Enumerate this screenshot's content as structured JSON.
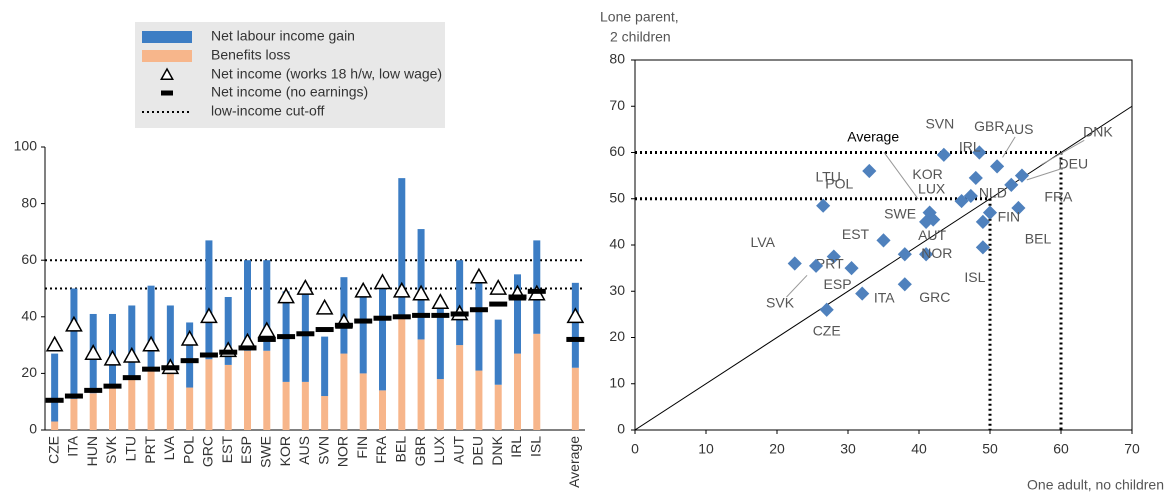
{
  "chart_data": [
    {
      "type": "bar",
      "stacked": true,
      "categories": [
        "CZE",
        "ITA",
        "HUN",
        "SVK",
        "LTU",
        "PRT",
        "LVA",
        "POL",
        "GRC",
        "EST",
        "ESP",
        "SWE",
        "KOR",
        "AUS",
        "SVN",
        "NOR",
        "FIN",
        "FRA",
        "BEL",
        "GBR",
        "LUX",
        "AUT",
        "DEU",
        "DNK",
        "IRL",
        "ISL",
        null,
        "Average"
      ],
      "series": [
        {
          "name": "Benefits loss",
          "color": "#f7b68b",
          "values": [
            3,
            11,
            13,
            15,
            18,
            21,
            20,
            15,
            25,
            23,
            28,
            28,
            17,
            17,
            12,
            27,
            20,
            14,
            40,
            32,
            18,
            30,
            21,
            16,
            27,
            34,
            null,
            22
          ]
        },
        {
          "name": "Net labour income gain",
          "color": "#3c7dc4",
          "values": [
            24,
            39,
            28,
            26,
            26,
            30,
            24,
            23,
            42,
            24,
            32,
            32,
            32,
            33,
            21,
            27,
            30,
            36,
            49,
            39,
            26,
            30,
            31,
            23,
            28,
            33,
            null,
            30
          ]
        }
      ],
      "markers": [
        {
          "name": "Net income (works 18 h/w, low wage)",
          "symbol": "triangle",
          "values": [
            30,
            37,
            27,
            25,
            26,
            30,
            22,
            32,
            40,
            28,
            31,
            35,
            47,
            50,
            43,
            38,
            49,
            52,
            49,
            48,
            45,
            41,
            54,
            50,
            48,
            48,
            null,
            40
          ]
        },
        {
          "name": "Net income (no earnings)",
          "symbol": "dash",
          "values": [
            10.5,
            12,
            14,
            15.5,
            18.5,
            21.5,
            22,
            24.5,
            26.5,
            27.5,
            29,
            32,
            33,
            34,
            35.5,
            37,
            38.5,
            39.5,
            40,
            40.5,
            40.5,
            41,
            42.5,
            44.5,
            47,
            49,
            null,
            32
          ]
        }
      ],
      "reference_lines": {
        "name": "low-income cut-off",
        "values": [
          50,
          60
        ]
      },
      "ylim": [
        0,
        100
      ],
      "yticks": [
        0,
        20,
        40,
        60,
        80,
        100
      ]
    },
    {
      "type": "scatter",
      "color": "#4f81bd",
      "labels": [
        "DNK",
        "DEU",
        "FRA",
        "BEL",
        "FIN",
        "NLD",
        "ISL",
        "AUS",
        "GBR",
        "IRL",
        "KOR",
        "SVN",
        "LUX",
        "SWE",
        "AUT",
        "NOR",
        "GRC",
        "ITA",
        "CZE",
        "ESP",
        "PRT",
        "SVK",
        "LVA",
        "EST",
        "LTU",
        "POL",
        "Average"
      ],
      "x": [
        54.5,
        53,
        54,
        50,
        49,
        47.3,
        49,
        51,
        48.5,
        48,
        46,
        43.5,
        41.5,
        41,
        41,
        38,
        38,
        32,
        27,
        30.5,
        28,
        25.5,
        22.5,
        35,
        26.5,
        33,
        42
      ],
      "y": [
        55,
        53,
        48,
        47,
        45,
        50.6,
        39.5,
        57,
        60,
        54.5,
        49.5,
        59.5,
        47,
        45,
        38,
        38,
        31.5,
        29.5,
        26,
        35,
        37.5,
        35.5,
        36,
        41,
        48.5,
        56,
        45.5
      ],
      "reference_lines": [
        50,
        60
      ],
      "xlabel": "One adult, no children",
      "ylabel": [
        "Lone parent,",
        "2 children"
      ],
      "xlim": [
        0,
        70
      ],
      "xticks": [
        0,
        10,
        20,
        30,
        40,
        50,
        60,
        70
      ],
      "ylim": [
        0,
        80
      ],
      "yticks": [
        0,
        10,
        20,
        30,
        40,
        50,
        60,
        70,
        80
      ]
    }
  ]
}
